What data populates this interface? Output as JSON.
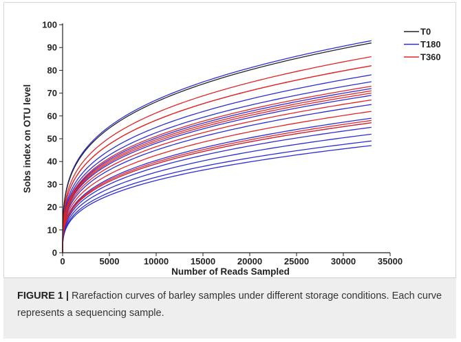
{
  "chart_data": {
    "type": "line",
    "xlabel": "Number of Reads Sampled",
    "ylabel": "Sobs index on OTU level",
    "xlim": [
      0,
      35000
    ],
    "ylim": [
      0,
      100
    ],
    "x_ticks": [
      "0",
      "5000",
      "10000",
      "15000",
      "20000",
      "25000",
      "30000",
      "35000"
    ],
    "y_ticks": [
      "0",
      "10",
      "20",
      "30",
      "40",
      "50",
      "60",
      "70",
      "80",
      "90",
      "100"
    ],
    "x_max_sampled": 33000,
    "legend_position": "top-right",
    "legend": [
      {
        "name": "T0",
        "color": "#222222"
      },
      {
        "name": "T180",
        "color": "#2b2bd6"
      },
      {
        "name": "T360",
        "color": "#e02424"
      }
    ],
    "series": [
      {
        "group": "T0",
        "final": 92
      },
      {
        "group": "T180",
        "final": 93
      },
      {
        "group": "T180",
        "final": 78
      },
      {
        "group": "T180",
        "final": 75
      },
      {
        "group": "T180",
        "final": 72
      },
      {
        "group": "T180",
        "final": 69
      },
      {
        "group": "T180",
        "final": 65
      },
      {
        "group": "T180",
        "final": 59
      },
      {
        "group": "T180",
        "final": 57
      },
      {
        "group": "T180",
        "final": 55
      },
      {
        "group": "T180",
        "final": 52
      },
      {
        "group": "T180",
        "final": 49
      },
      {
        "group": "T180",
        "final": 47
      },
      {
        "group": "T360",
        "final": 86
      },
      {
        "group": "T360",
        "final": 82
      },
      {
        "group": "T360",
        "final": 82
      },
      {
        "group": "T360",
        "final": 73
      },
      {
        "group": "T360",
        "final": 71
      },
      {
        "group": "T360",
        "final": 70
      },
      {
        "group": "T360",
        "final": 67
      },
      {
        "group": "T360",
        "final": 62
      },
      {
        "group": "T360",
        "final": 58
      },
      {
        "group": "T360",
        "final": 57
      }
    ]
  },
  "caption": {
    "label": "FIGURE 1 |",
    "text": " Rarefaction curves of barley samples under different storage conditions. Each curve represents a sequencing sample."
  }
}
